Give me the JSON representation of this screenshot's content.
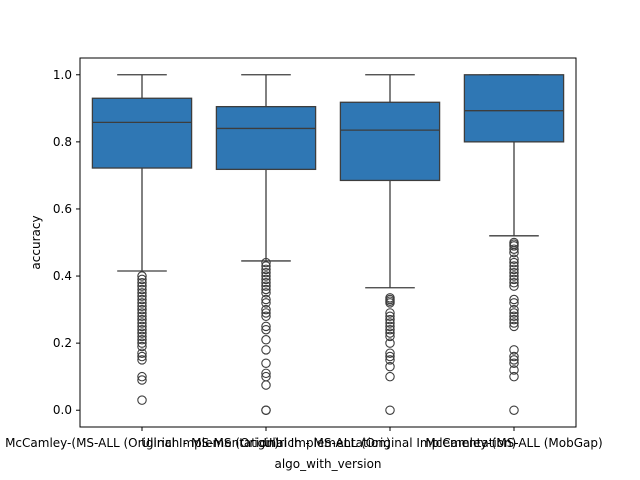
{
  "chart_data": {
    "type": "box",
    "xlabel": "algo_with_version",
    "ylabel": "accuracy",
    "ylim": [
      -0.05,
      1.05
    ],
    "yticks": [
      0.0,
      0.2,
      0.4,
      0.6,
      0.8,
      1.0
    ],
    "ytick_labels": [
      "0.0",
      "0.2",
      "0.4",
      "0.6",
      "0.8",
      "1.0"
    ],
    "grid": false,
    "legend": "none",
    "color": "#2f77b4",
    "categories": [
      "McCamley-(MS-ALL (Original Implementation)",
      "Ullrich - MS-MS (Original Implementation)",
      "Ullrich - MS-ALL (Original Implementation)",
      "McCamley-(MS-ALL (MobGap)"
    ],
    "boxes": [
      {
        "whisker_low": 0.415,
        "q1": 0.722,
        "median": 0.858,
        "q3": 0.93,
        "whisker_high": 1.0,
        "outliers": [
          0.4,
          0.39,
          0.38,
          0.37,
          0.36,
          0.35,
          0.34,
          0.33,
          0.32,
          0.31,
          0.3,
          0.29,
          0.28,
          0.27,
          0.26,
          0.25,
          0.24,
          0.23,
          0.22,
          0.21,
          0.2,
          0.19,
          0.17,
          0.16,
          0.15,
          0.1,
          0.09,
          0.03
        ]
      },
      {
        "whisker_low": 0.445,
        "q1": 0.718,
        "median": 0.84,
        "q3": 0.905,
        "whisker_high": 1.0,
        "outliers": [
          0.44,
          0.43,
          0.42,
          0.41,
          0.4,
          0.39,
          0.38,
          0.37,
          0.36,
          0.35,
          0.33,
          0.32,
          0.3,
          0.29,
          0.28,
          0.25,
          0.24,
          0.21,
          0.18,
          0.14,
          0.11,
          0.1,
          0.075,
          0.0,
          0.0
        ]
      },
      {
        "whisker_low": 0.365,
        "q1": 0.685,
        "median": 0.835,
        "q3": 0.918,
        "whisker_high": 1.0,
        "outliers": [
          0.335,
          0.33,
          0.325,
          0.32,
          0.29,
          0.28,
          0.27,
          0.26,
          0.25,
          0.24,
          0.23,
          0.22,
          0.2,
          0.17,
          0.16,
          0.15,
          0.13,
          0.1,
          0.0
        ]
      },
      {
        "whisker_low": 0.52,
        "q1": 0.8,
        "median": 0.893,
        "q3": 1.0,
        "whisker_high": 1.0,
        "outliers": [
          0.5,
          0.495,
          0.49,
          0.48,
          0.47,
          0.45,
          0.44,
          0.43,
          0.42,
          0.41,
          0.4,
          0.39,
          0.38,
          0.37,
          0.33,
          0.32,
          0.3,
          0.29,
          0.28,
          0.27,
          0.26,
          0.25,
          0.18,
          0.16,
          0.15,
          0.14,
          0.12,
          0.1,
          0.0
        ]
      }
    ]
  }
}
